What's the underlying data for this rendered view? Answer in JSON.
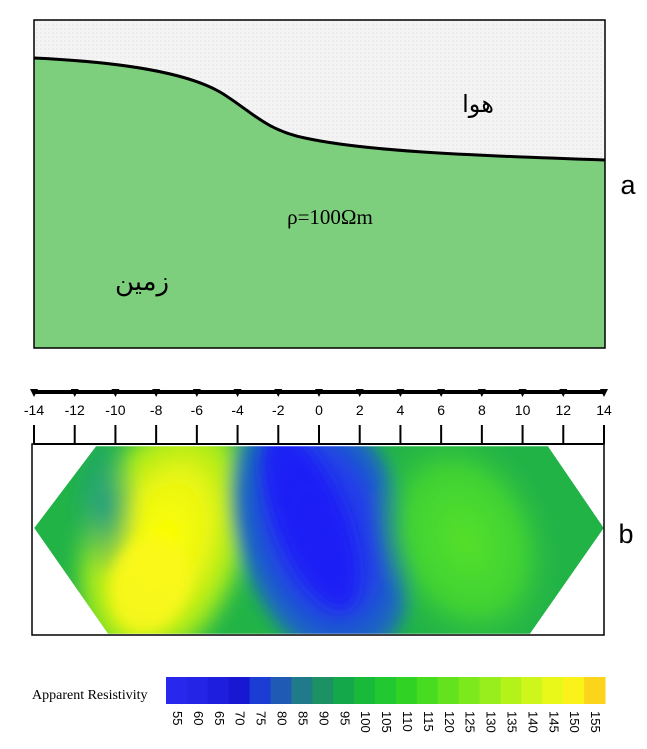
{
  "panel_a": {
    "panel_letter": "a",
    "air_label": "هوا",
    "ground_label": "زمین",
    "resistivity_label": "ρ=100Ωm",
    "colors": {
      "ground": "#7dcf7d",
      "air": "#f4f4f4",
      "border": "#000000"
    }
  },
  "panel_b": {
    "panel_letter": "b",
    "axis": {
      "ticks": [
        -14,
        -12,
        -10,
        -8,
        -6,
        -4,
        -2,
        0,
        2,
        4,
        6,
        8,
        10,
        12,
        14
      ],
      "tick_labels": [
        "-14",
        "-12",
        "-10",
        "-8",
        "-6",
        "-4",
        "-2",
        "0",
        "2",
        "4",
        "6",
        "8",
        "10",
        "12",
        "14"
      ],
      "range": [
        -14,
        14
      ]
    },
    "section": {
      "shape": "hexagon",
      "dominant_zones": [
        {
          "x_range": [
            -12,
            -4
          ],
          "resistivity": "high",
          "color_hint": "#ffff00"
        },
        {
          "x_range": [
            -3,
            4
          ],
          "resistivity": "low",
          "color_hint": "#1e1ef0"
        },
        {
          "x_range": [
            4,
            12
          ],
          "resistivity": "intermediate",
          "color_hint": "#55d43a"
        }
      ]
    }
  },
  "legend": {
    "title": "Apparent Resistivity",
    "values": [
      "55",
      "60",
      "65",
      "70",
      "75",
      "80",
      "85",
      "90",
      "95",
      "100",
      "105",
      "110",
      "115",
      "120",
      "125",
      "130",
      "135",
      "140",
      "145",
      "150",
      "155"
    ],
    "colors": [
      "#2727ee",
      "#2424e6",
      "#1e1ede",
      "#1818d2",
      "#1c3dd4",
      "#1f5ab4",
      "#1f7a8a",
      "#1c9264",
      "#14a84a",
      "#19b93a",
      "#22c82f",
      "#30d324",
      "#47dc20",
      "#62e31e",
      "#7ce91d",
      "#97ee1c",
      "#b4f31a",
      "#cff61a",
      "#e9f819",
      "#fbf21a",
      "#fcd51b"
    ]
  }
}
